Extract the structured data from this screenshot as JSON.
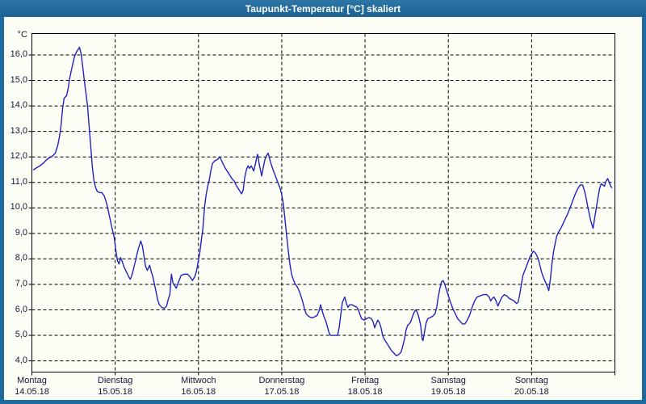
{
  "window": {
    "title": "Taupunkt-Temperatur [°C] skaliert",
    "titlebar_color": "#1D6B9E",
    "content_background": "#FCFDF4"
  },
  "chart_data": {
    "type": "line",
    "title": "Taupunkt-Temperatur [°C] skaliert",
    "grid": "dashed",
    "legend": "none",
    "y_axis": {
      "unit_label": "°C",
      "tick_values": [
        16,
        15,
        14,
        13,
        12,
        11,
        10,
        9,
        8,
        7,
        6,
        5,
        4
      ],
      "tick_labels": [
        "16,0",
        "15,0",
        "14,0",
        "13,0",
        "12,0",
        "11,0",
        "10,0",
        "9,0",
        "8,0",
        "7,0",
        "6,0",
        "5,0",
        "4,0"
      ],
      "visible_range": [
        3.6,
        16.85
      ]
    },
    "x_axis": {
      "range_days": [
        0,
        7
      ],
      "days": [
        {
          "weekday": "Montag",
          "date": "14.05.18"
        },
        {
          "weekday": "Dienstag",
          "date": "15.05.18"
        },
        {
          "weekday": "Mittwoch",
          "date": "16.05.18"
        },
        {
          "weekday": "Donnerstag",
          "date": "17.05.18"
        },
        {
          "weekday": "Freitag",
          "date": "18.05.18"
        },
        {
          "weekday": "Samstag",
          "date": "19.05.18"
        },
        {
          "weekday": "Sonntag",
          "date": "20.05.18"
        }
      ]
    },
    "series": [
      {
        "name": "Taupunkt-Temperatur",
        "color": "#2222C0",
        "points": [
          [
            0.019,
            11.5
          ],
          [
            0.058,
            11.58
          ],
          [
            0.097,
            11.65
          ],
          [
            0.136,
            11.75
          ],
          [
            0.174,
            11.88
          ],
          [
            0.213,
            11.97
          ],
          [
            0.252,
            12.05
          ],
          [
            0.281,
            12.15
          ],
          [
            0.31,
            12.45
          ],
          [
            0.329,
            12.75
          ],
          [
            0.349,
            13.2
          ],
          [
            0.368,
            13.9
          ],
          [
            0.387,
            14.3
          ],
          [
            0.416,
            14.4
          ],
          [
            0.436,
            14.7
          ],
          [
            0.455,
            15.1
          ],
          [
            0.474,
            15.4
          ],
          [
            0.494,
            15.7
          ],
          [
            0.513,
            15.95
          ],
          [
            0.533,
            16.1
          ],
          [
            0.552,
            16.2
          ],
          [
            0.571,
            16.3
          ],
          [
            0.591,
            16.05
          ],
          [
            0.61,
            15.55
          ],
          [
            0.629,
            15.0
          ],
          [
            0.649,
            14.5
          ],
          [
            0.668,
            14.0
          ],
          [
            0.687,
            13.2
          ],
          [
            0.707,
            12.4
          ],
          [
            0.726,
            11.6
          ],
          [
            0.746,
            11.05
          ],
          [
            0.765,
            10.8
          ],
          [
            0.784,
            10.65
          ],
          [
            0.813,
            10.6
          ],
          [
            0.842,
            10.6
          ],
          [
            0.871,
            10.45
          ],
          [
            0.9,
            10.15
          ],
          [
            0.93,
            9.7
          ],
          [
            0.959,
            9.25
          ],
          [
            0.988,
            8.85
          ],
          [
            1.007,
            8.35
          ],
          [
            1.026,
            7.95
          ],
          [
            1.046,
            7.8
          ],
          [
            1.065,
            8.05
          ],
          [
            1.084,
            7.9
          ],
          [
            1.104,
            7.7
          ],
          [
            1.133,
            7.5
          ],
          [
            1.162,
            7.3
          ],
          [
            1.181,
            7.2
          ],
          [
            1.2,
            7.35
          ],
          [
            1.22,
            7.6
          ],
          [
            1.249,
            8.0
          ],
          [
            1.278,
            8.4
          ],
          [
            1.307,
            8.7
          ],
          [
            1.327,
            8.5
          ],
          [
            1.346,
            8.1
          ],
          [
            1.365,
            7.7
          ],
          [
            1.385,
            7.55
          ],
          [
            1.414,
            7.75
          ],
          [
            1.433,
            7.5
          ],
          [
            1.452,
            7.3
          ],
          [
            1.472,
            7.0
          ],
          [
            1.491,
            6.7
          ],
          [
            1.51,
            6.4
          ],
          [
            1.53,
            6.2
          ],
          [
            1.559,
            6.1
          ],
          [
            1.588,
            6.05
          ],
          [
            1.617,
            6.15
          ],
          [
            1.636,
            6.4
          ],
          [
            1.656,
            6.6
          ],
          [
            1.675,
            7.4
          ],
          [
            1.694,
            7.05
          ],
          [
            1.714,
            6.95
          ],
          [
            1.733,
            6.85
          ],
          [
            1.762,
            7.1
          ],
          [
            1.791,
            7.35
          ],
          [
            1.83,
            7.4
          ],
          [
            1.869,
            7.4
          ],
          [
            1.898,
            7.3
          ],
          [
            1.927,
            7.15
          ],
          [
            1.956,
            7.3
          ],
          [
            1.975,
            7.5
          ],
          [
            1.994,
            7.85
          ],
          [
            2.014,
            8.2
          ],
          [
            2.033,
            8.7
          ],
          [
            2.053,
            9.2
          ],
          [
            2.072,
            10.0
          ],
          [
            2.091,
            10.5
          ],
          [
            2.111,
            10.85
          ],
          [
            2.13,
            11.1
          ],
          [
            2.15,
            11.5
          ],
          [
            2.169,
            11.75
          ],
          [
            2.198,
            11.85
          ],
          [
            2.227,
            11.9
          ],
          [
            2.256,
            12.0
          ],
          [
            2.285,
            11.8
          ],
          [
            2.314,
            11.6
          ],
          [
            2.343,
            11.45
          ],
          [
            2.372,
            11.3
          ],
          [
            2.401,
            11.15
          ],
          [
            2.43,
            11.05
          ],
          [
            2.45,
            10.9
          ],
          [
            2.469,
            10.8
          ],
          [
            2.498,
            10.65
          ],
          [
            2.518,
            10.55
          ],
          [
            2.537,
            10.7
          ],
          [
            2.556,
            11.2
          ],
          [
            2.576,
            11.5
          ],
          [
            2.595,
            11.65
          ],
          [
            2.614,
            11.55
          ],
          [
            2.633,
            11.65
          ],
          [
            2.663,
            11.45
          ],
          [
            2.682,
            11.7
          ],
          [
            2.701,
            12.0
          ],
          [
            2.711,
            12.1
          ],
          [
            2.73,
            11.7
          ],
          [
            2.75,
            11.4
          ],
          [
            2.759,
            11.25
          ],
          [
            2.779,
            11.6
          ],
          [
            2.798,
            11.9
          ],
          [
            2.817,
            12.05
          ],
          [
            2.837,
            12.15
          ],
          [
            2.856,
            11.9
          ],
          [
            2.875,
            11.7
          ],
          [
            2.895,
            11.5
          ],
          [
            2.924,
            11.25
          ],
          [
            2.953,
            11.0
          ],
          [
            2.982,
            10.75
          ],
          [
            3.001,
            10.5
          ],
          [
            3.021,
            10.1
          ],
          [
            3.04,
            9.5
          ],
          [
            3.059,
            8.9
          ],
          [
            3.079,
            8.3
          ],
          [
            3.098,
            7.8
          ],
          [
            3.118,
            7.4
          ],
          [
            3.137,
            7.2
          ],
          [
            3.156,
            7.05
          ],
          [
            3.176,
            6.95
          ],
          [
            3.195,
            6.85
          ],
          [
            3.214,
            6.7
          ],
          [
            3.234,
            6.5
          ],
          [
            3.253,
            6.3
          ],
          [
            3.272,
            6.05
          ],
          [
            3.292,
            5.85
          ],
          [
            3.321,
            5.75
          ],
          [
            3.35,
            5.7
          ],
          [
            3.379,
            5.7
          ],
          [
            3.408,
            5.75
          ],
          [
            3.427,
            5.8
          ],
          [
            3.447,
            5.95
          ],
          [
            3.466,
            6.2
          ],
          [
            3.486,
            5.95
          ],
          [
            3.505,
            5.75
          ],
          [
            3.524,
            5.6
          ],
          [
            3.544,
            5.4
          ],
          [
            3.563,
            5.15
          ],
          [
            3.582,
            5.0
          ],
          [
            3.621,
            5.0
          ],
          [
            3.67,
            5.0
          ],
          [
            3.689,
            5.3
          ],
          [
            3.708,
            5.8
          ],
          [
            3.728,
            6.3
          ],
          [
            3.757,
            6.5
          ],
          [
            3.776,
            6.25
          ],
          [
            3.795,
            6.1
          ],
          [
            3.815,
            6.2
          ],
          [
            3.844,
            6.2
          ],
          [
            3.873,
            6.15
          ],
          [
            3.902,
            6.1
          ],
          [
            3.921,
            6.0
          ],
          [
            3.941,
            5.8
          ],
          [
            3.96,
            5.65
          ],
          [
            3.989,
            5.6
          ],
          [
            4.018,
            5.65
          ],
          [
            4.047,
            5.7
          ],
          [
            4.076,
            5.65
          ],
          [
            4.095,
            5.55
          ],
          [
            4.115,
            5.3
          ],
          [
            4.134,
            5.45
          ],
          [
            4.153,
            5.6
          ],
          [
            4.173,
            5.5
          ],
          [
            4.192,
            5.3
          ],
          [
            4.211,
            5.0
          ],
          [
            4.231,
            4.85
          ],
          [
            4.26,
            4.7
          ],
          [
            4.289,
            4.55
          ],
          [
            4.318,
            4.4
          ],
          [
            4.347,
            4.3
          ],
          [
            4.376,
            4.2
          ],
          [
            4.405,
            4.25
          ],
          [
            4.434,
            4.35
          ],
          [
            4.454,
            4.6
          ],
          [
            4.473,
            4.85
          ],
          [
            4.492,
            5.2
          ],
          [
            4.512,
            5.4
          ],
          [
            4.531,
            5.45
          ],
          [
            4.55,
            5.55
          ],
          [
            4.57,
            5.75
          ],
          [
            4.589,
            5.9
          ],
          [
            4.608,
            6.0
          ],
          [
            4.628,
            5.9
          ],
          [
            4.647,
            5.7
          ],
          [
            4.667,
            5.4
          ],
          [
            4.686,
            4.85
          ],
          [
            4.696,
            4.8
          ],
          [
            4.715,
            5.15
          ],
          [
            4.734,
            5.5
          ],
          [
            4.754,
            5.65
          ],
          [
            4.783,
            5.7
          ],
          [
            4.812,
            5.75
          ],
          [
            4.841,
            5.85
          ],
          [
            4.86,
            6.1
          ],
          [
            4.879,
            6.5
          ],
          [
            4.899,
            6.85
          ],
          [
            4.918,
            7.1
          ],
          [
            4.938,
            7.15
          ],
          [
            4.957,
            7.0
          ],
          [
            4.976,
            6.8
          ],
          [
            4.996,
            6.6
          ],
          [
            5.025,
            6.3
          ],
          [
            5.054,
            6.05
          ],
          [
            5.083,
            5.85
          ],
          [
            5.112,
            5.65
          ],
          [
            5.141,
            5.55
          ],
          [
            5.17,
            5.45
          ],
          [
            5.199,
            5.45
          ],
          [
            5.228,
            5.6
          ],
          [
            5.257,
            5.8
          ],
          [
            5.286,
            6.1
          ],
          [
            5.315,
            6.35
          ],
          [
            5.344,
            6.5
          ],
          [
            5.383,
            6.55
          ],
          [
            5.422,
            6.6
          ],
          [
            5.461,
            6.6
          ],
          [
            5.49,
            6.5
          ],
          [
            5.509,
            6.35
          ],
          [
            5.528,
            6.45
          ],
          [
            5.548,
            6.5
          ],
          [
            5.567,
            6.4
          ],
          [
            5.596,
            6.15
          ],
          [
            5.615,
            6.3
          ],
          [
            5.644,
            6.5
          ],
          [
            5.673,
            6.6
          ],
          [
            5.702,
            6.55
          ],
          [
            5.731,
            6.45
          ],
          [
            5.76,
            6.4
          ],
          [
            5.79,
            6.35
          ],
          [
            5.819,
            6.25
          ],
          [
            5.838,
            6.3
          ],
          [
            5.857,
            6.6
          ],
          [
            5.877,
            7.0
          ],
          [
            5.896,
            7.35
          ],
          [
            5.925,
            7.6
          ],
          [
            5.954,
            7.85
          ],
          [
            5.983,
            8.1
          ],
          [
            6.002,
            8.2
          ],
          [
            6.022,
            8.3
          ],
          [
            6.041,
            8.25
          ],
          [
            6.06,
            8.15
          ],
          [
            6.08,
            8.0
          ],
          [
            6.099,
            7.75
          ],
          [
            6.118,
            7.5
          ],
          [
            6.138,
            7.3
          ],
          [
            6.157,
            7.15
          ],
          [
            6.177,
            7.0
          ],
          [
            6.196,
            6.85
          ],
          [
            6.206,
            6.75
          ],
          [
            6.225,
            7.2
          ],
          [
            6.244,
            7.8
          ],
          [
            6.264,
            8.3
          ],
          [
            6.283,
            8.6
          ],
          [
            6.302,
            8.9
          ],
          [
            6.322,
            9.05
          ],
          [
            6.351,
            9.2
          ],
          [
            6.38,
            9.4
          ],
          [
            6.409,
            9.6
          ],
          [
            6.438,
            9.8
          ],
          [
            6.467,
            10.05
          ],
          [
            6.496,
            10.3
          ],
          [
            6.525,
            10.55
          ],
          [
            6.554,
            10.75
          ],
          [
            6.583,
            10.9
          ],
          [
            6.612,
            10.9
          ],
          [
            6.632,
            10.7
          ],
          [
            6.651,
            10.45
          ],
          [
            6.67,
            10.1
          ],
          [
            6.69,
            9.8
          ],
          [
            6.709,
            9.5
          ],
          [
            6.728,
            9.3
          ],
          [
            6.738,
            9.2
          ],
          [
            6.757,
            9.6
          ],
          [
            6.777,
            10.0
          ],
          [
            6.796,
            10.4
          ],
          [
            6.816,
            10.75
          ],
          [
            6.835,
            10.95
          ],
          [
            6.855,
            10.9
          ],
          [
            6.874,
            10.85
          ],
          [
            6.893,
            11.05
          ],
          [
            6.913,
            11.15
          ],
          [
            6.932,
            11.0
          ],
          [
            6.951,
            10.85
          ],
          [
            6.961,
            10.8
          ]
        ]
      }
    ]
  }
}
